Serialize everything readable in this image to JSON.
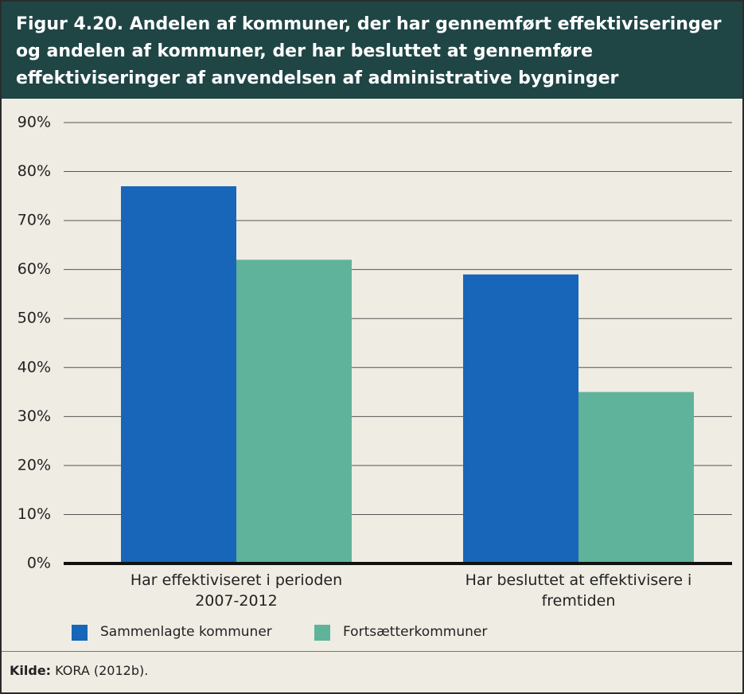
{
  "chart_data": {
    "type": "bar",
    "title": "Figur 4.20. Andelen af kommuner, der har gennemført effektiviseringer og andelen af kommuner, der har besluttet at gennemføre effektiviseringer af anvendelsen af administrative bygninger",
    "categories": [
      "Har effektiviseret i perioden 2007-2012",
      "Har besluttet at effektivisere i fremtiden"
    ],
    "series": [
      {
        "name": "Sammenlagte kommuner",
        "color": "#1766b9",
        "values": [
          77,
          59
        ]
      },
      {
        "name": "Fortsætterkommuner",
        "color": "#5fb39b",
        "values": [
          62,
          35
        ]
      }
    ],
    "ylim": [
      0,
      90
    ],
    "yticks": [
      {
        "value": 0,
        "label": "0%"
      },
      {
        "value": 10,
        "label": "10%"
      },
      {
        "value": 20,
        "label": "20%"
      },
      {
        "value": 30,
        "label": "30%"
      },
      {
        "value": 40,
        "label": "40%"
      },
      {
        "value": 50,
        "label": "50%"
      },
      {
        "value": 60,
        "label": "60%"
      },
      {
        "value": 70,
        "label": "70%"
      },
      {
        "value": 80,
        "label": "80%"
      },
      {
        "value": 90,
        "label": "90%"
      }
    ],
    "grid": true,
    "source": {
      "label": "Kilde:",
      "text": "KORA (2012b)."
    }
  }
}
